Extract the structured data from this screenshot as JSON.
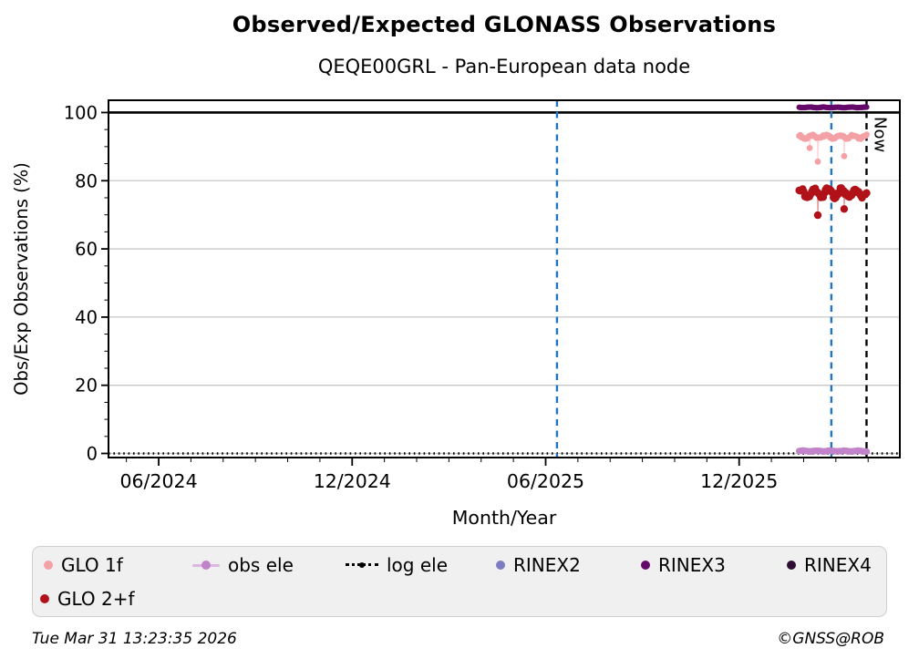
{
  "page": {
    "title": "Observed/Expected GLONASS Observations",
    "subtitle": "QEQE00GRL - Pan-European data node",
    "footer_left": "Tue Mar 31 13:23:35 2026",
    "footer_right": "©GNSS@ROB"
  },
  "legend": {
    "items": [
      {
        "label": "GLO 1f",
        "color": "#f4a1a6",
        "marker": "dot"
      },
      {
        "label": "obs ele",
        "color": "#c183c9",
        "line_color": "#dcb8e0",
        "marker": "line-dot"
      },
      {
        "label": "log ele",
        "color": "#000000",
        "marker": "dotted-line"
      },
      {
        "label": "RINEX2",
        "color": "#7e7cc0",
        "marker": "dot"
      },
      {
        "label": "RINEX3",
        "color": "#65096b",
        "marker": "dot"
      },
      {
        "label": "RINEX4",
        "color": "#2e0f33",
        "marker": "dot"
      },
      {
        "label": "GLO 2+f",
        "color": "#b11219",
        "marker": "dot"
      }
    ]
  },
  "chart_data": {
    "type": "scatter",
    "title": "Observed/Expected GLONASS Observations",
    "subtitle": "QEQE00GRL - Pan-European data node",
    "xlabel": "Month/Year",
    "ylabel": "Obs/Exp Observations (%)",
    "x_domain_decimal_years": [
      2024.287,
      2026.332
    ],
    "ylim": [
      -1.2,
      103.6
    ],
    "y_ticks": [
      0,
      20,
      40,
      60,
      80,
      100
    ],
    "y_minor_step": 5,
    "x_ticks": [
      {
        "value": 2024.4167,
        "label": "06/2024"
      },
      {
        "value": 2024.9167,
        "label": "12/2024"
      },
      {
        "value": 2025.4167,
        "label": "06/2025"
      },
      {
        "value": 2025.9167,
        "label": "12/2025"
      }
    ],
    "grid": {
      "horizontal_major": true,
      "vertical": false,
      "color": "#c9c9c9"
    },
    "reference_lines": [
      {
        "name": "expected-100pct",
        "y": 100,
        "style": "solid",
        "color": "#000000",
        "width": 2.6
      },
      {
        "name": "log ele",
        "y": 0,
        "style": "dotted",
        "color": "#000000",
        "width": 2.4
      }
    ],
    "event_lines": [
      {
        "x": 2025.446,
        "style": "dashed",
        "color": "#1f74c4",
        "label": ""
      },
      {
        "x": 2026.155,
        "style": "dashed",
        "color": "#1f74c4",
        "label": ""
      },
      {
        "x": 2026.2459,
        "style": "dashed",
        "color": "#000000",
        "label": "Now"
      }
    ],
    "series": [
      {
        "name": "obs ele",
        "color": "#c183c9",
        "marker_px": 7.2,
        "band": {
          "x_start": 2026.072,
          "x_end": 2026.2459,
          "y_mean": 0.7,
          "y_jitter": 0.18
        },
        "outliers": []
      },
      {
        "name": "GLO 2+f",
        "color": "#b11219",
        "marker_px": 8.4,
        "band": {
          "x_start": 2026.072,
          "x_end": 2026.2459,
          "y_mean": 76.4,
          "y_jitter": 1.7
        },
        "outliers": [
          [
            2026.12,
            69.9
          ],
          [
            2026.188,
            71.7
          ]
        ]
      },
      {
        "name": "GLO 1f",
        "color": "#f4a1a6",
        "marker_px": 6.8,
        "band": {
          "x_start": 2026.072,
          "x_end": 2026.2459,
          "y_mean": 92.9,
          "y_jitter": 0.7
        },
        "outliers": [
          [
            2026.099,
            89.6
          ],
          [
            2026.12,
            85.6
          ],
          [
            2026.188,
            87.2
          ]
        ]
      },
      {
        "name": "RINEX3",
        "color": "#65096b",
        "marker_px": 6.2,
        "band": {
          "x_start": 2026.072,
          "x_end": 2026.2459,
          "y_mean": 101.5,
          "y_jitter": 0.12
        },
        "outliers": []
      },
      {
        "name": "RINEX2",
        "color": "#7e7cc0",
        "points": []
      },
      {
        "name": "RINEX4",
        "color": "#2e0f33",
        "points": []
      },
      {
        "name": "log ele",
        "color": "#000000",
        "points": [],
        "note": "dotted reference line at y=0"
      }
    ]
  }
}
